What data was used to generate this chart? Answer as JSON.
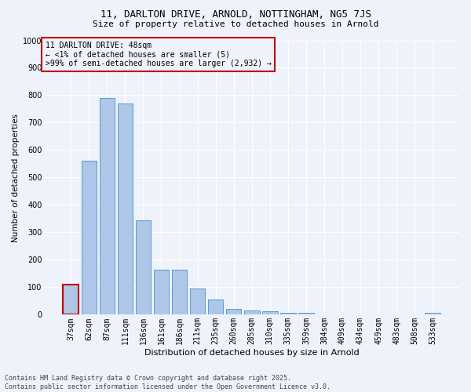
{
  "title1": "11, DARLTON DRIVE, ARNOLD, NOTTINGHAM, NG5 7JS",
  "title2": "Size of property relative to detached houses in Arnold",
  "xlabel": "Distribution of detached houses by size in Arnold",
  "ylabel": "Number of detached properties",
  "categories": [
    "37sqm",
    "62sqm",
    "87sqm",
    "111sqm",
    "136sqm",
    "161sqm",
    "186sqm",
    "211sqm",
    "235sqm",
    "260sqm",
    "285sqm",
    "310sqm",
    "335sqm",
    "359sqm",
    "384sqm",
    "409sqm",
    "434sqm",
    "459sqm",
    "483sqm",
    "508sqm",
    "533sqm"
  ],
  "values": [
    110,
    560,
    790,
    770,
    345,
    165,
    165,
    95,
    55,
    20,
    15,
    12,
    8,
    8,
    0,
    2,
    0,
    2,
    0,
    0,
    8
  ],
  "bar_color": "#aec6e8",
  "bar_edge_color": "#5b9bd5",
  "highlight_bar_index": 0,
  "highlight_bar_edge_color": "#c00000",
  "annotation_box_text": "11 DARLTON DRIVE: 48sqm\n← <1% of detached houses are smaller (5)\n>99% of semi-detached houses are larger (2,932) →",
  "annotation_box_edge_color": "#c00000",
  "ylim": [
    0,
    1000
  ],
  "yticks": [
    0,
    100,
    200,
    300,
    400,
    500,
    600,
    700,
    800,
    900,
    1000
  ],
  "background_color": "#eef2fa",
  "grid_color": "#ffffff",
  "footer1": "Contains HM Land Registry data © Crown copyright and database right 2025.",
  "footer2": "Contains public sector information licensed under the Open Government Licence v3.0.",
  "title1_fontsize": 9,
  "title2_fontsize": 8,
  "xlabel_fontsize": 8,
  "ylabel_fontsize": 7.5,
  "tick_fontsize": 7,
  "ann_fontsize": 7,
  "footer_fontsize": 6
}
